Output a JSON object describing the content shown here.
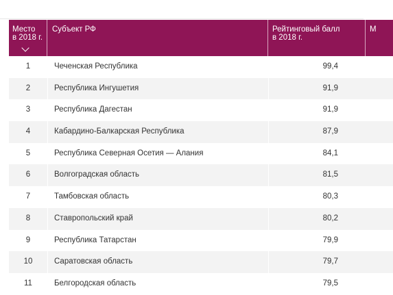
{
  "table": {
    "headers": {
      "place_line1": "Место",
      "place_line2": "в 2018 г.",
      "subject": "Субъект РФ",
      "score_line1": "Рейтинговый балл",
      "score_line2": "в 2018 г.",
      "more": "М"
    },
    "rows": [
      {
        "place": "1",
        "subject": "Чеченская Республика",
        "score": "99,4"
      },
      {
        "place": "2",
        "subject": "Республика Ингушетия",
        "score": "91,9"
      },
      {
        "place": "3",
        "subject": "Республика Дагестан",
        "score": "91,9"
      },
      {
        "place": "4",
        "subject": "Кабардино-Балкарская Республика",
        "score": "87,9"
      },
      {
        "place": "5",
        "subject": "Республика Северная Осетия — Алания",
        "score": "84,1"
      },
      {
        "place": "6",
        "subject": "Волгоградская область",
        "score": "81,5"
      },
      {
        "place": "7",
        "subject": "Тамбовская область",
        "score": "80,3"
      },
      {
        "place": "8",
        "subject": "Ставропольский край",
        "score": "80,2"
      },
      {
        "place": "9",
        "subject": "Республика Татарстан",
        "score": "79,9"
      },
      {
        "place": "10",
        "subject": "Саратовская область",
        "score": "79,7"
      },
      {
        "place": "11",
        "subject": "Белгородская область",
        "score": "79,5"
      }
    ]
  },
  "colors": {
    "header_bg": "#8f1556",
    "alt_row_bg": "#f3f3f3"
  }
}
